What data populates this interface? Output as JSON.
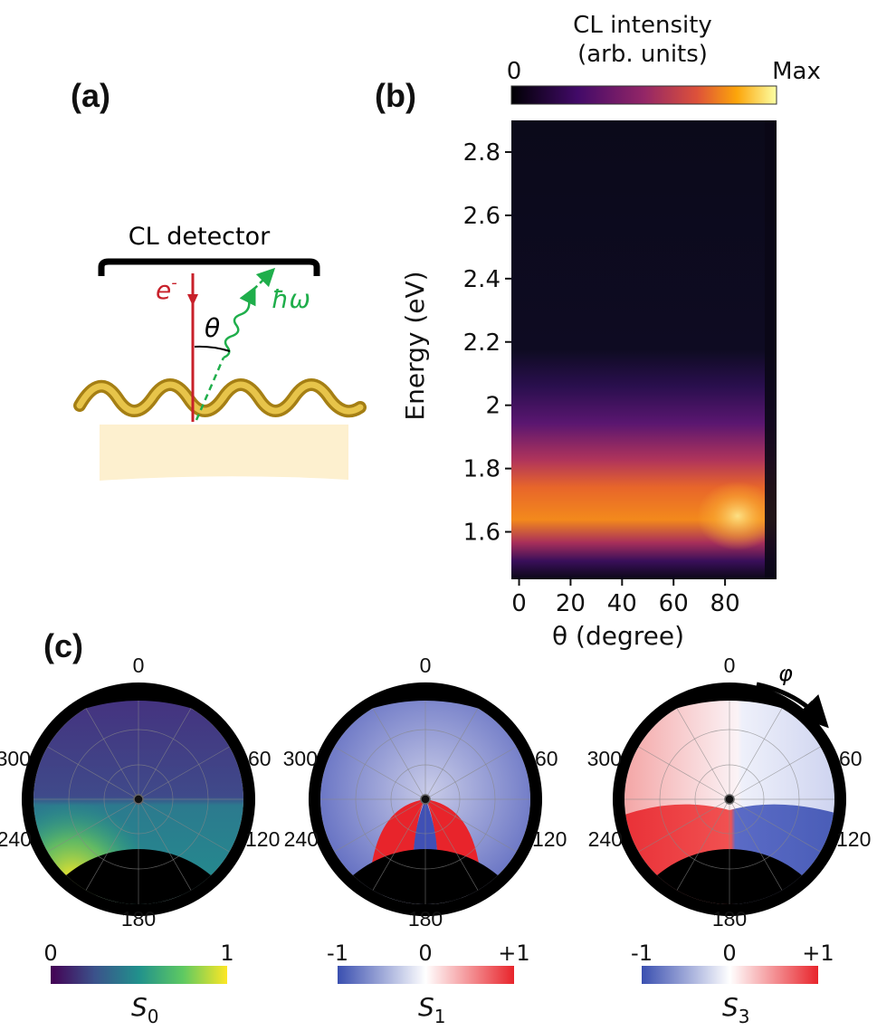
{
  "panels": {
    "a": "(a)",
    "b": "(b)",
    "c": "(c)"
  },
  "schematic": {
    "detector_label": "CL detector",
    "electron_label": "e",
    "electron_sup": "-",
    "photon_label": "ħω",
    "angle_label": "θ",
    "colors": {
      "electron": "#c8202a",
      "photon": "#1fae4b",
      "helix": "#c9a227",
      "substrate": "#fdf0cf"
    }
  },
  "chart_data": [
    {
      "type": "heatmap",
      "title": "",
      "xlabel": "θ (degree)",
      "ylabel": "Energy (eV)",
      "xticks": [
        0,
        20,
        40,
        60,
        80
      ],
      "yticks": [
        1.6,
        1.8,
        2.0,
        2.2,
        2.4,
        2.6,
        2.8
      ],
      "xlim": [
        -3,
        100
      ],
      "ylim": [
        1.45,
        2.9
      ],
      "colorbar": {
        "title_line1": "CL intensity",
        "title_line2": "(arb. units)",
        "min_label": "0",
        "max_label": "Max",
        "colormap": "inferno"
      },
      "features": {
        "emission_band_eV": [
          1.55,
          2.05
        ],
        "peak_energy_eV": 1.65,
        "peak_theta_deg": 75
      }
    },
    {
      "type": "polar-heatmap",
      "quantity": "S",
      "subscript": "0",
      "angle_ticks": [
        "0",
        "60",
        "120",
        "180",
        "240",
        "300"
      ],
      "colorbar": {
        "min_label": "0",
        "mid_label": "",
        "max_label": "1",
        "colormap": "viridis"
      }
    },
    {
      "type": "polar-heatmap",
      "quantity": "S",
      "subscript": "1",
      "angle_ticks": [
        "0",
        "60",
        "120",
        "180",
        "240",
        "300"
      ],
      "colorbar": {
        "min_label": "-1",
        "mid_label": "0",
        "max_label": "+1",
        "colormap": "blue-white-red"
      }
    },
    {
      "type": "polar-heatmap",
      "quantity": "S",
      "subscript": "3",
      "angle_ticks": [
        "0",
        "60",
        "120",
        "180",
        "240",
        "300"
      ],
      "azimuth_label": "φ",
      "colorbar": {
        "min_label": "-1",
        "mid_label": "0",
        "max_label": "+1",
        "colormap": "blue-white-red"
      }
    }
  ]
}
